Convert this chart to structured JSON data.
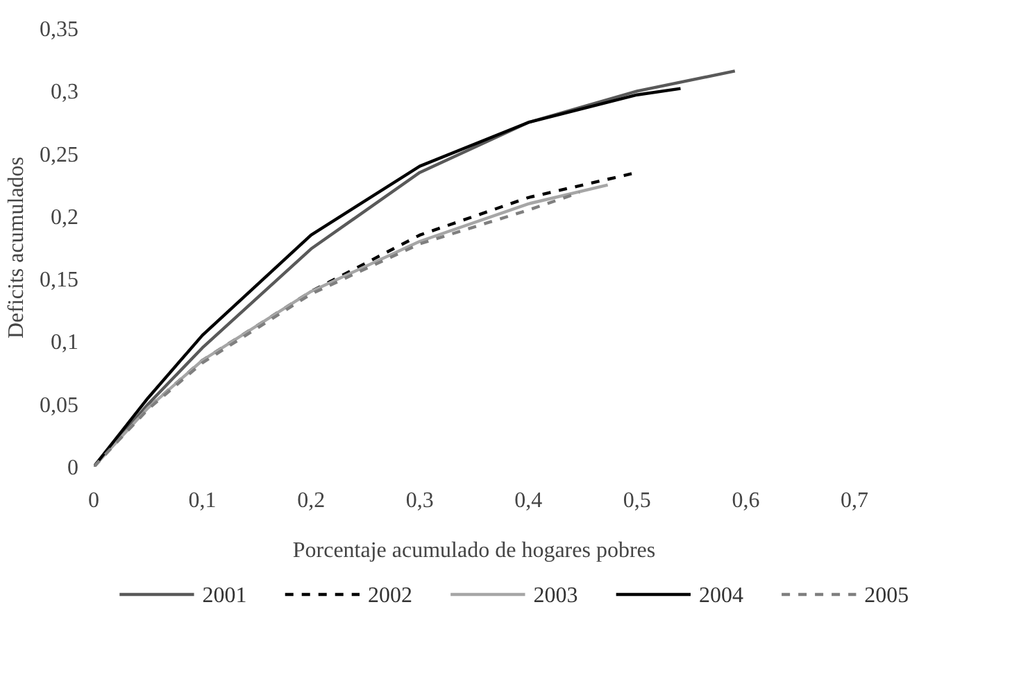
{
  "chart_data": {
    "type": "line",
    "xlabel": "Porcentaje acumulado de hogares pobres",
    "ylabel": "Deficits acumulados",
    "xlim": [
      0,
      0.7
    ],
    "ylim": [
      0,
      0.35
    ],
    "xticks": [
      {
        "value": 0,
        "label": "0"
      },
      {
        "value": 0.1,
        "label": "0,1"
      },
      {
        "value": 0.2,
        "label": "0,2"
      },
      {
        "value": 0.3,
        "label": "0,3"
      },
      {
        "value": 0.4,
        "label": "0,4"
      },
      {
        "value": 0.5,
        "label": "0,5"
      },
      {
        "value": 0.6,
        "label": "0,6"
      },
      {
        "value": 0.7,
        "label": "0,7"
      }
    ],
    "yticks": [
      {
        "value": 0,
        "label": "0"
      },
      {
        "value": 0.05,
        "label": "0,05"
      },
      {
        "value": 0.1,
        "label": "0,1"
      },
      {
        "value": 0.15,
        "label": "0,15"
      },
      {
        "value": 0.2,
        "label": "0,2"
      },
      {
        "value": 0.25,
        "label": "0,25"
      },
      {
        "value": 0.3,
        "label": "0,3"
      },
      {
        "value": 0.35,
        "label": "0,35"
      }
    ],
    "grid": false,
    "legend": "bottom",
    "marker": "none",
    "series": [
      {
        "name": "2001",
        "color": "#595959",
        "line_style": "solid",
        "x": [
          0,
          0.05,
          0.1,
          0.2,
          0.3,
          0.4,
          0.5,
          0.59
        ],
        "values": [
          0,
          0.05,
          0.095,
          0.174,
          0.235,
          0.275,
          0.3,
          0.316
        ]
      },
      {
        "name": "2002",
        "color": "#000000",
        "line_style": "dashed",
        "x": [
          0,
          0.05,
          0.1,
          0.2,
          0.3,
          0.4,
          0.495
        ],
        "values": [
          0,
          0.047,
          0.085,
          0.14,
          0.185,
          0.215,
          0.234
        ]
      },
      {
        "name": "2003",
        "color": "#a6a6a6",
        "line_style": "solid",
        "x": [
          0,
          0.05,
          0.1,
          0.2,
          0.3,
          0.4,
          0.473
        ],
        "values": [
          0,
          0.047,
          0.085,
          0.14,
          0.18,
          0.21,
          0.225
        ]
      },
      {
        "name": "2004",
        "color": "#000000",
        "line_style": "solid",
        "x": [
          0,
          0.05,
          0.1,
          0.2,
          0.3,
          0.4,
          0.5,
          0.54
        ],
        "values": [
          0,
          0.055,
          0.105,
          0.185,
          0.24,
          0.275,
          0.297,
          0.302
        ]
      },
      {
        "name": "2005",
        "color": "#7f7f7f",
        "line_style": "dashed",
        "x": [
          0,
          0.05,
          0.1,
          0.2,
          0.3,
          0.4,
          0.447
        ],
        "values": [
          0,
          0.046,
          0.083,
          0.138,
          0.178,
          0.205,
          0.219
        ]
      }
    ]
  }
}
